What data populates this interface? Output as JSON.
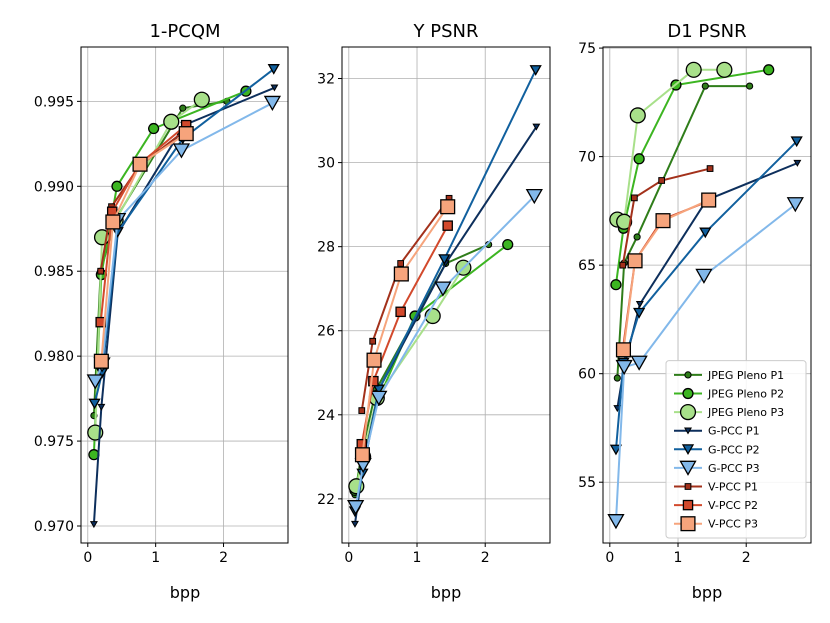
{
  "chart_data": [
    {
      "type": "line",
      "title": "1-PCQM",
      "xlabel": "bpp",
      "ylabel": "",
      "xlim": [
        -0.1,
        2.95
      ],
      "ylim": [
        0.969,
        0.9982
      ],
      "xticks": [
        0,
        1,
        2
      ],
      "xtick_labels": [
        "0",
        "1",
        "2"
      ],
      "yticks": [
        0.97,
        0.975,
        0.98,
        0.985,
        0.99,
        0.995
      ],
      "ytick_labels": [
        "0.970",
        "0.975",
        "0.980",
        "0.985",
        "0.990",
        "0.995"
      ],
      "grid": true,
      "series": [
        {
          "name": "JPEG Pleno P1",
          "x": [
            0.09,
            0.19,
            0.4,
            1.4,
            2.05
          ],
          "y": [
            0.9765,
            0.985,
            0.988,
            0.9946,
            0.995
          ]
        },
        {
          "name": "JPEG Pleno P2",
          "x": [
            0.09,
            0.2,
            0.43,
            0.97,
            2.33
          ],
          "y": [
            0.9742,
            0.9848,
            0.99,
            0.9934,
            0.9956
          ]
        },
        {
          "name": "JPEG Pleno P3",
          "x": [
            0.11,
            0.21,
            0.41,
            1.23,
            1.68
          ],
          "y": [
            0.9755,
            0.987,
            0.988,
            0.9938,
            0.9951
          ]
        },
        {
          "name": "G-PCC P1",
          "x": [
            0.09,
            0.2,
            0.44,
            1.42,
            2.75
          ],
          "y": [
            0.9701,
            0.977,
            0.9872,
            0.9936,
            0.9958
          ]
        },
        {
          "name": "G-PCC P2",
          "x": [
            0.1,
            0.21,
            0.44,
            1.4,
            2.74
          ],
          "y": [
            0.9772,
            0.979,
            0.9873,
            0.9928,
            0.9969
          ]
        },
        {
          "name": "G-PCC P3",
          "x": [
            0.11,
            0.21,
            0.44,
            1.38,
            2.72
          ],
          "y": [
            0.9785,
            0.9795,
            0.988,
            0.9921,
            0.9949
          ]
        },
        {
          "name": "V-PCC P1",
          "x": [
            0.19,
            0.35,
            0.76,
            1.47
          ],
          "y": [
            0.985,
            0.9888,
            0.9912,
            0.9934
          ]
        },
        {
          "name": "V-PCC P2",
          "x": [
            0.19,
            0.36,
            0.76,
            1.45
          ],
          "y": [
            0.982,
            0.9885,
            0.9913,
            0.9936
          ]
        },
        {
          "name": "V-PCC P3",
          "x": [
            0.2,
            0.37,
            0.77,
            1.45
          ],
          "y": [
            0.9797,
            0.9879,
            0.9913,
            0.9931
          ]
        }
      ]
    },
    {
      "type": "line",
      "title": "Y PSNR",
      "xlabel": "bpp",
      "ylabel": "",
      "xlim": [
        -0.1,
        2.95
      ],
      "ylim": [
        20.95,
        32.75
      ],
      "xticks": [
        0,
        1,
        2
      ],
      "xtick_labels": [
        "0",
        "1",
        "2"
      ],
      "yticks": [
        22,
        24,
        26,
        28,
        30,
        32
      ],
      "ytick_labels": [
        "22",
        "24",
        "26",
        "28",
        "30",
        "32"
      ],
      "grid": true,
      "series": [
        {
          "name": "JPEG Pleno P1",
          "x": [
            0.09,
            0.19,
            0.4,
            1.42,
            2.05
          ],
          "y": [
            22.1,
            23.1,
            24.6,
            27.6,
            28.05
          ]
        },
        {
          "name": "JPEG Pleno P2",
          "x": [
            0.09,
            0.2,
            0.43,
            0.97,
            2.33
          ],
          "y": [
            22.2,
            23.0,
            24.35,
            26.35,
            28.05
          ]
        },
        {
          "name": "JPEG Pleno P3",
          "x": [
            0.11,
            0.21,
            0.41,
            1.23,
            1.68
          ],
          "y": [
            22.3,
            23.0,
            24.4,
            26.35,
            27.5
          ]
        },
        {
          "name": "G-PCC P1",
          "x": [
            0.09,
            0.2,
            0.44,
            1.42,
            2.75
          ],
          "y": [
            21.4,
            22.7,
            24.6,
            27.6,
            30.85
          ]
        },
        {
          "name": "G-PCC P2",
          "x": [
            0.09,
            0.2,
            0.44,
            1.4,
            2.74
          ],
          "y": [
            21.7,
            22.6,
            24.6,
            27.7,
            32.2
          ]
        },
        {
          "name": "G-PCC P3",
          "x": [
            0.1,
            0.21,
            0.44,
            1.38,
            2.72
          ],
          "y": [
            21.8,
            22.8,
            24.4,
            27.0,
            29.2
          ]
        },
        {
          "name": "V-PCC P1",
          "x": [
            0.19,
            0.35,
            0.76,
            1.47
          ],
          "y": [
            24.1,
            25.75,
            27.6,
            29.15
          ]
        },
        {
          "name": "V-PCC P2",
          "x": [
            0.19,
            0.36,
            0.76,
            1.45
          ],
          "y": [
            23.3,
            24.8,
            26.45,
            28.5
          ]
        },
        {
          "name": "V-PCC P3",
          "x": [
            0.2,
            0.37,
            0.77,
            1.45
          ],
          "y": [
            23.05,
            25.3,
            27.35,
            28.95
          ]
        }
      ]
    },
    {
      "type": "line",
      "title": "D1 PSNR",
      "xlabel": "bpp",
      "ylabel": "",
      "xlim": [
        -0.1,
        2.95
      ],
      "ylim": [
        52.2,
        75.05
      ],
      "xticks": [
        0,
        1,
        2
      ],
      "xtick_labels": [
        "0",
        "1",
        "2"
      ],
      "yticks": [
        55,
        60,
        65,
        70,
        75
      ],
      "ytick_labels": [
        "55",
        "60",
        "65",
        "70",
        "75"
      ],
      "grid": true,
      "legend_position": "bottom-right",
      "series": [
        {
          "name": "JPEG Pleno P1",
          "x": [
            0.11,
            0.21,
            0.4,
            1.4,
            2.05
          ],
          "y": [
            59.8,
            65.1,
            66.3,
            73.25,
            73.25
          ]
        },
        {
          "name": "JPEG Pleno P2",
          "x": [
            0.09,
            0.2,
            0.43,
            0.97,
            2.33
          ],
          "y": [
            64.1,
            66.7,
            69.9,
            73.3,
            74.0
          ]
        },
        {
          "name": "JPEG Pleno P3",
          "x": [
            0.11,
            0.21,
            0.41,
            1.23,
            1.68
          ],
          "y": [
            67.1,
            67.0,
            71.9,
            74.0,
            74.0
          ]
        },
        {
          "name": "G-PCC P1",
          "x": [
            0.11,
            0.21,
            0.44,
            1.42,
            2.75
          ],
          "y": [
            58.4,
            60.3,
            63.2,
            68.0,
            69.7
          ]
        },
        {
          "name": "G-PCC P2",
          "x": [
            0.09,
            0.2,
            0.43,
            1.4,
            2.74
          ],
          "y": [
            56.5,
            60.5,
            62.8,
            66.5,
            70.7
          ]
        },
        {
          "name": "G-PCC P3",
          "x": [
            0.09,
            0.21,
            0.43,
            1.38,
            2.72
          ],
          "y": [
            53.2,
            60.3,
            60.5,
            64.5,
            67.8
          ]
        },
        {
          "name": "V-PCC P1",
          "x": [
            0.19,
            0.36,
            0.76,
            1.47
          ],
          "y": [
            65.0,
            68.1,
            68.9,
            69.45
          ]
        },
        {
          "name": "V-PCC P2",
          "x": [
            0.19,
            0.37,
            0.77,
            1.45
          ],
          "y": [
            61.1,
            65.2,
            67.1,
            67.95
          ]
        },
        {
          "name": "V-PCC P3",
          "x": [
            0.2,
            0.37,
            0.78,
            1.45
          ],
          "y": [
            61.1,
            65.2,
            67.05,
            68.0
          ]
        }
      ]
    }
  ],
  "series_styles": [
    {
      "name": "JPEG Pleno P1",
      "color": "#2f7d1a",
      "marker": "circle",
      "size": "small"
    },
    {
      "name": "JPEG Pleno P2",
      "color": "#3cb521",
      "marker": "circle",
      "size": "medium"
    },
    {
      "name": "JPEG Pleno P3",
      "color": "#a8e08a",
      "marker": "circle",
      "size": "large"
    },
    {
      "name": "G-PCC P1",
      "color": "#0d2f5c",
      "marker": "triangle-down",
      "size": "small"
    },
    {
      "name": "G-PCC P2",
      "color": "#11609e",
      "marker": "triangle-down",
      "size": "medium"
    },
    {
      "name": "G-PCC P3",
      "color": "#82b8ea",
      "marker": "triangle-down",
      "size": "large"
    },
    {
      "name": "V-PCC P1",
      "color": "#a3311b",
      "marker": "square",
      "size": "small"
    },
    {
      "name": "V-PCC P2",
      "color": "#d2492c",
      "marker": "square",
      "size": "medium"
    },
    {
      "name": "V-PCC P3",
      "color": "#f6a47c",
      "marker": "square",
      "size": "large"
    }
  ],
  "marker_fill": {
    "JPEG Pleno P1": "#2f7d1a",
    "JPEG Pleno P2": "#3cb521",
    "JPEG Pleno P3": "#a8e08a",
    "G-PCC P1": "#0d2f5c",
    "G-PCC P2": "#11609e",
    "G-PCC P3": "#82b8ea",
    "V-PCC P1": "#a3311b",
    "V-PCC P2": "#d2492c",
    "V-PCC P3": "#f6a47c"
  }
}
